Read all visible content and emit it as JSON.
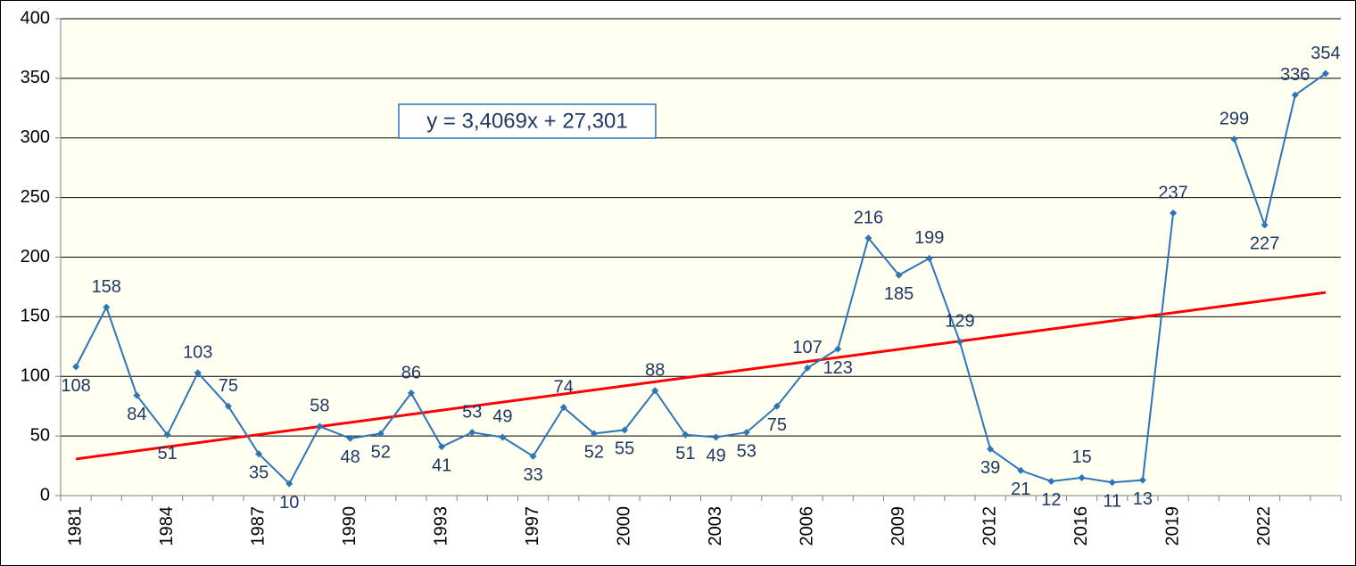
{
  "chart_data": {
    "type": "line",
    "categories": [
      "1981",
      null,
      null,
      "1984",
      null,
      null,
      "1987",
      null,
      null,
      "1990",
      null,
      null,
      "1993",
      null,
      null,
      "1997",
      null,
      null,
      "2000",
      null,
      null,
      "2003",
      null,
      null,
      "2006",
      null,
      null,
      "2009",
      null,
      null,
      "2012",
      null,
      null,
      "2016",
      null,
      null,
      "2019",
      null,
      null,
      "2022",
      null,
      null
    ],
    "values": [
      108,
      158,
      84,
      51,
      103,
      75,
      35,
      10,
      58,
      48,
      52,
      86,
      41,
      53,
      49,
      33,
      74,
      52,
      55,
      88,
      51,
      49,
      53,
      75,
      107,
      123,
      216,
      185,
      199,
      129,
      39,
      21,
      12,
      15,
      11,
      13,
      237,
      null,
      299,
      227,
      336,
      354
    ],
    "color": "#2e75b6",
    "trendline": {
      "slope": 3.4069,
      "intercept": 27.301,
      "label": "y = 3,4069x + 27,301",
      "color": "#ff0000"
    },
    "ylim": [
      0,
      400
    ],
    "yticks": [
      0,
      50,
      100,
      150,
      200,
      250,
      300,
      350,
      400
    ],
    "grid": true
  }
}
